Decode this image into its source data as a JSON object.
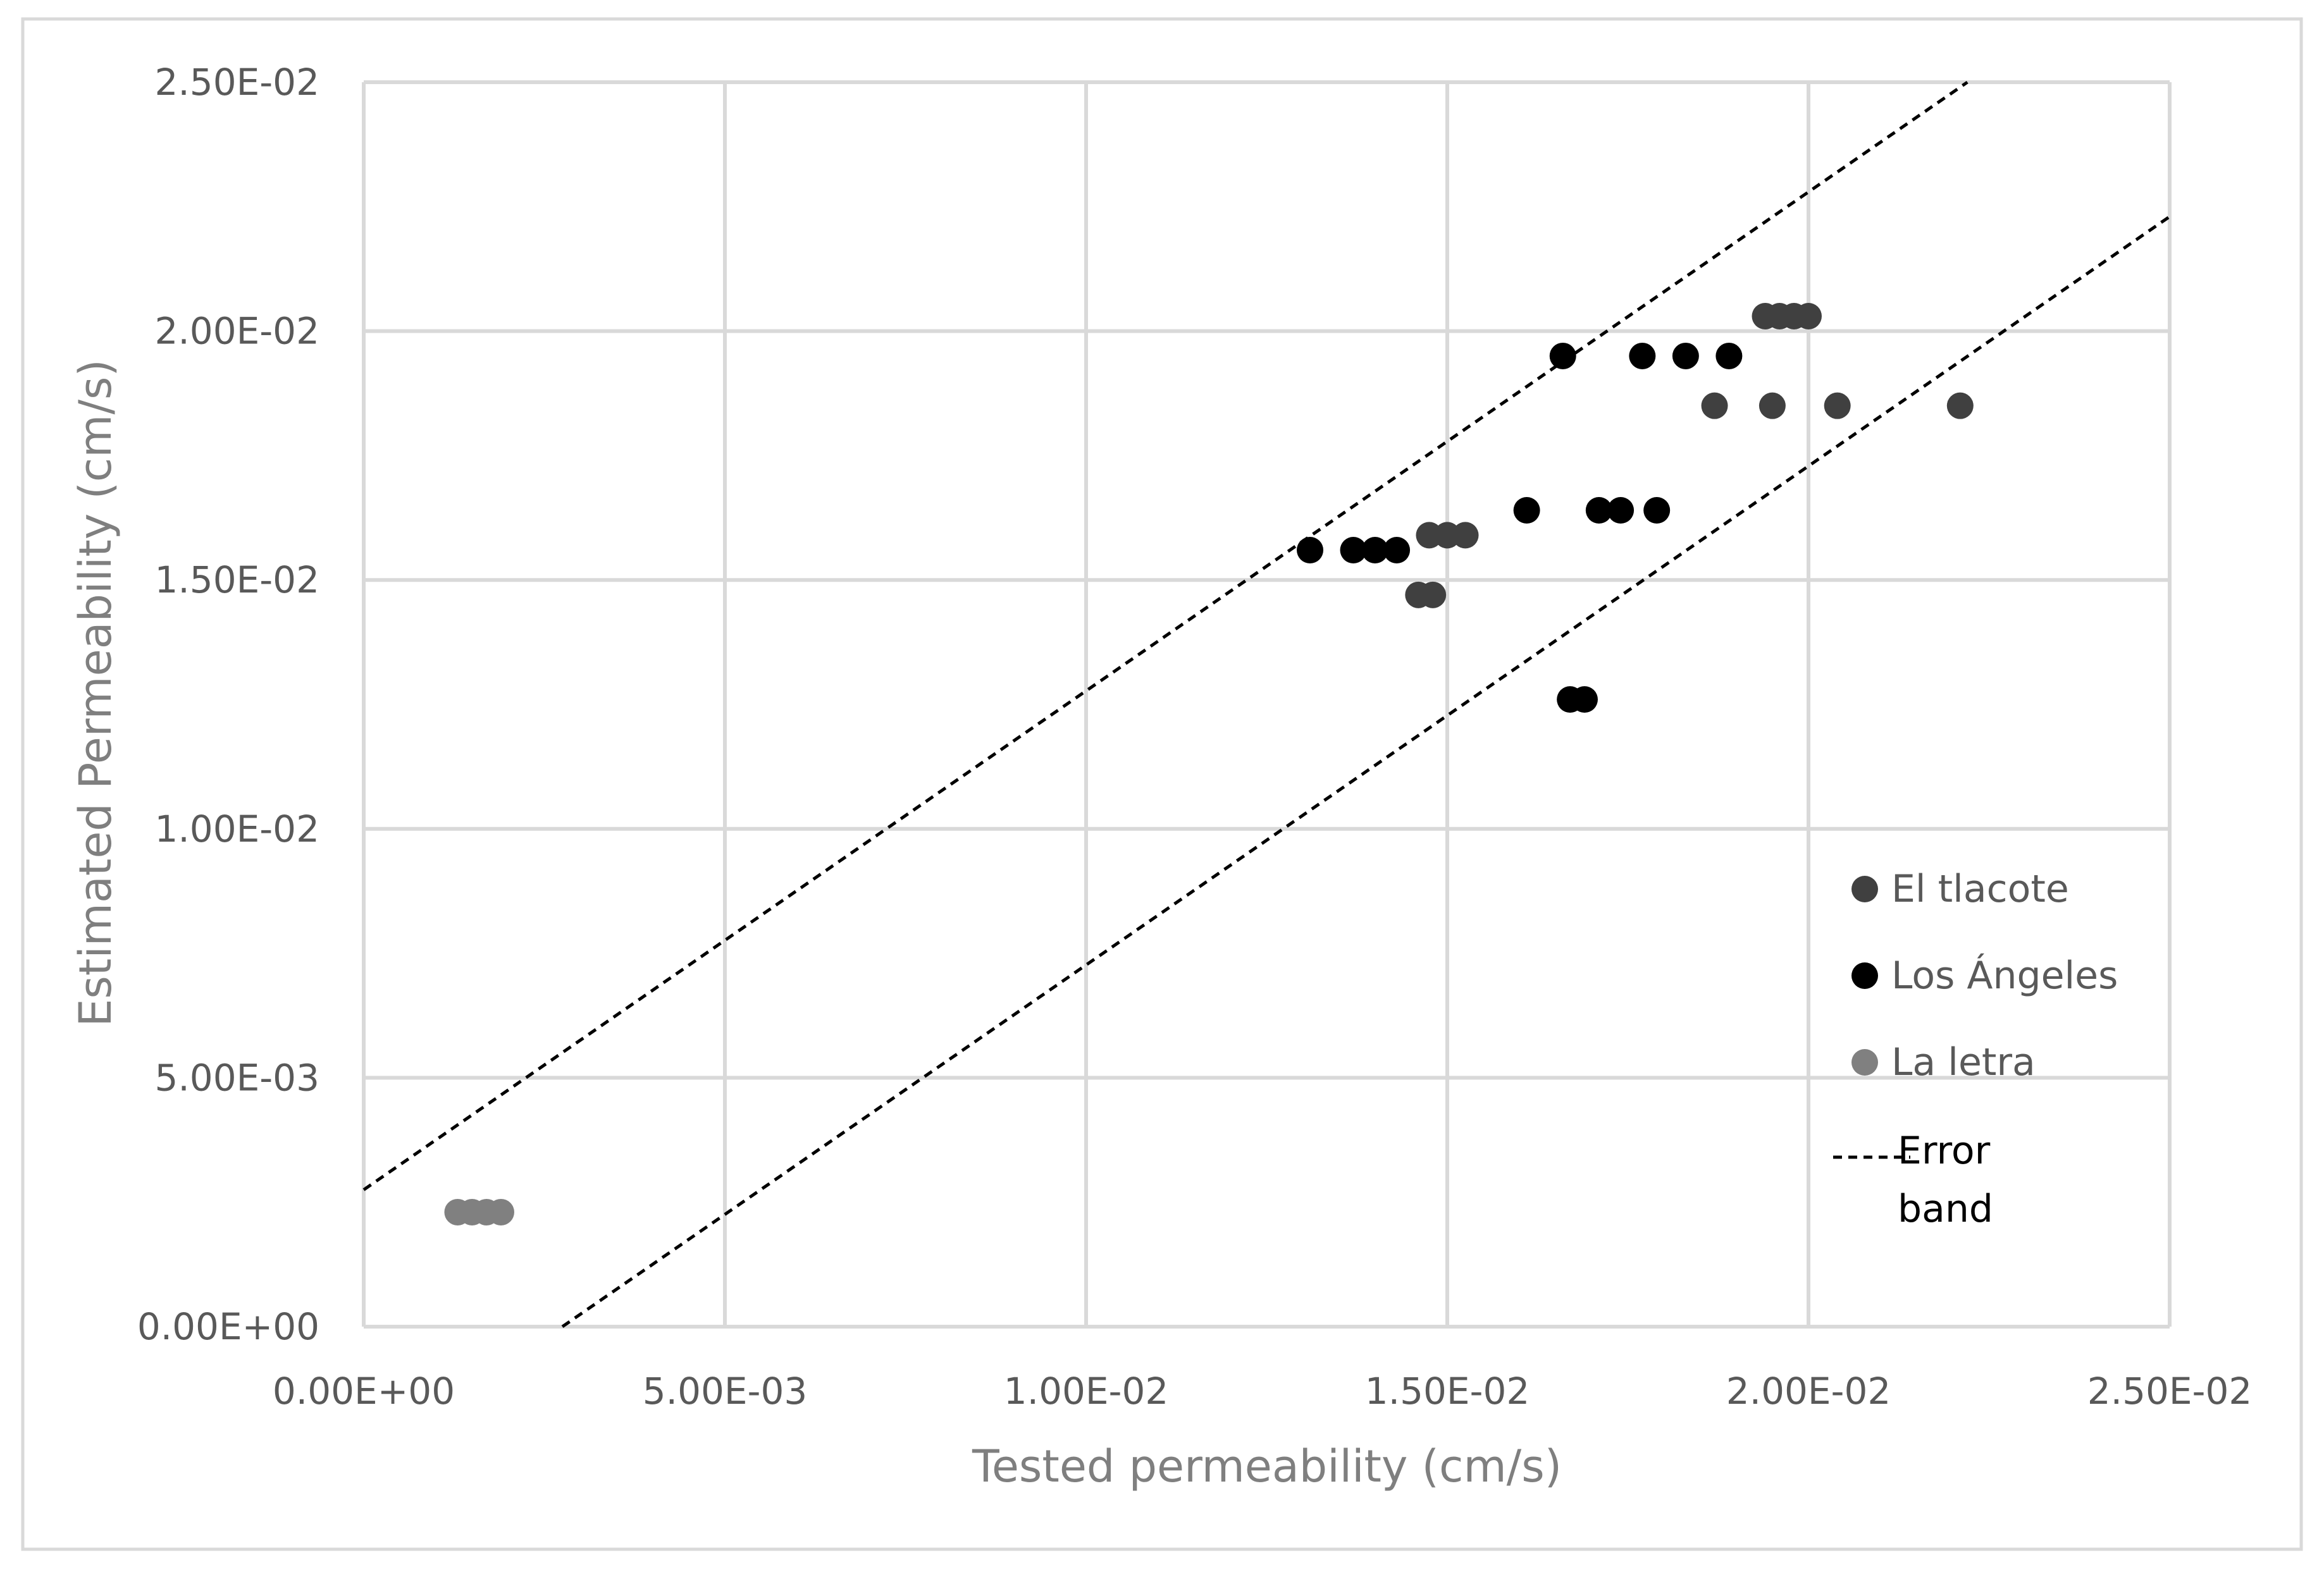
{
  "chart_data": {
    "type": "scatter",
    "title": "",
    "xlabel": "Tested permeability (cm/s)",
    "ylabel": "Estimated Permeability (cm/s)",
    "xlim": [
      0,
      0.025
    ],
    "ylim": [
      0,
      0.025
    ],
    "x_ticks": [
      "0.00E+00",
      "5.00E-03",
      "1.00E-02",
      "1.50E-02",
      "2.00E-02",
      "2.50E-02"
    ],
    "y_ticks": [
      "0.00E+00",
      "5.00E-03",
      "1.00E-02",
      "1.50E-02",
      "2.00E-02",
      "2.50E-02"
    ],
    "x_tick_values": [
      0,
      0.005,
      0.01,
      0.015,
      0.02,
      0.025
    ],
    "y_tick_values": [
      0,
      0.005,
      0.01,
      0.015,
      0.02,
      0.025
    ],
    "grid": true,
    "legend_position": "right",
    "series": [
      {
        "name": "El tlacote",
        "color": "#404040",
        "points": [
          {
            "x": 0.0194,
            "y": 0.0203
          },
          {
            "x": 0.0196,
            "y": 0.0203
          },
          {
            "x": 0.0198,
            "y": 0.0203
          },
          {
            "x": 0.02,
            "y": 0.0203
          },
          {
            "x": 0.0187,
            "y": 0.0185
          },
          {
            "x": 0.0195,
            "y": 0.0185
          },
          {
            "x": 0.0204,
            "y": 0.0185
          },
          {
            "x": 0.0221,
            "y": 0.0185
          },
          {
            "x": 0.01475,
            "y": 0.0159
          },
          {
            "x": 0.015,
            "y": 0.0159
          },
          {
            "x": 0.01525,
            "y": 0.0159
          },
          {
            "x": 0.0146,
            "y": 0.0147
          },
          {
            "x": 0.0148,
            "y": 0.0147
          }
        ]
      },
      {
        "name": "Los Ángeles",
        "color": "#000000",
        "points": [
          {
            "x": 0.0166,
            "y": 0.0195
          },
          {
            "x": 0.0177,
            "y": 0.0195
          },
          {
            "x": 0.0183,
            "y": 0.0195
          },
          {
            "x": 0.0189,
            "y": 0.0195
          },
          {
            "x": 0.0161,
            "y": 0.0164
          },
          {
            "x": 0.0171,
            "y": 0.0164
          },
          {
            "x": 0.0174,
            "y": 0.0164
          },
          {
            "x": 0.0179,
            "y": 0.0164
          },
          {
            "x": 0.0131,
            "y": 0.0156
          },
          {
            "x": 0.0137,
            "y": 0.0156
          },
          {
            "x": 0.014,
            "y": 0.0156
          },
          {
            "x": 0.0143,
            "y": 0.0156
          },
          {
            "x": 0.0167,
            "y": 0.0126
          },
          {
            "x": 0.0169,
            "y": 0.0126
          }
        ]
      },
      {
        "name": "La letra",
        "color": "#808080",
        "points": [
          {
            "x": 0.0013,
            "y": 0.0023
          },
          {
            "x": 0.0015,
            "y": 0.0023
          },
          {
            "x": 0.0017,
            "y": 0.0023
          },
          {
            "x": 0.0019,
            "y": 0.0023
          }
        ]
      }
    ],
    "error_band": {
      "name": "Error band",
      "name_lines": [
        "Error",
        "band"
      ],
      "color": "#000000",
      "upper": [
        {
          "x": 0,
          "y": 0.00275
        },
        {
          "x": 0.0222,
          "y": 0.025
        }
      ],
      "lower": [
        {
          "x": 0.00275,
          "y": 0
        },
        {
          "x": 0.025,
          "y": 0.0223
        }
      ]
    }
  }
}
